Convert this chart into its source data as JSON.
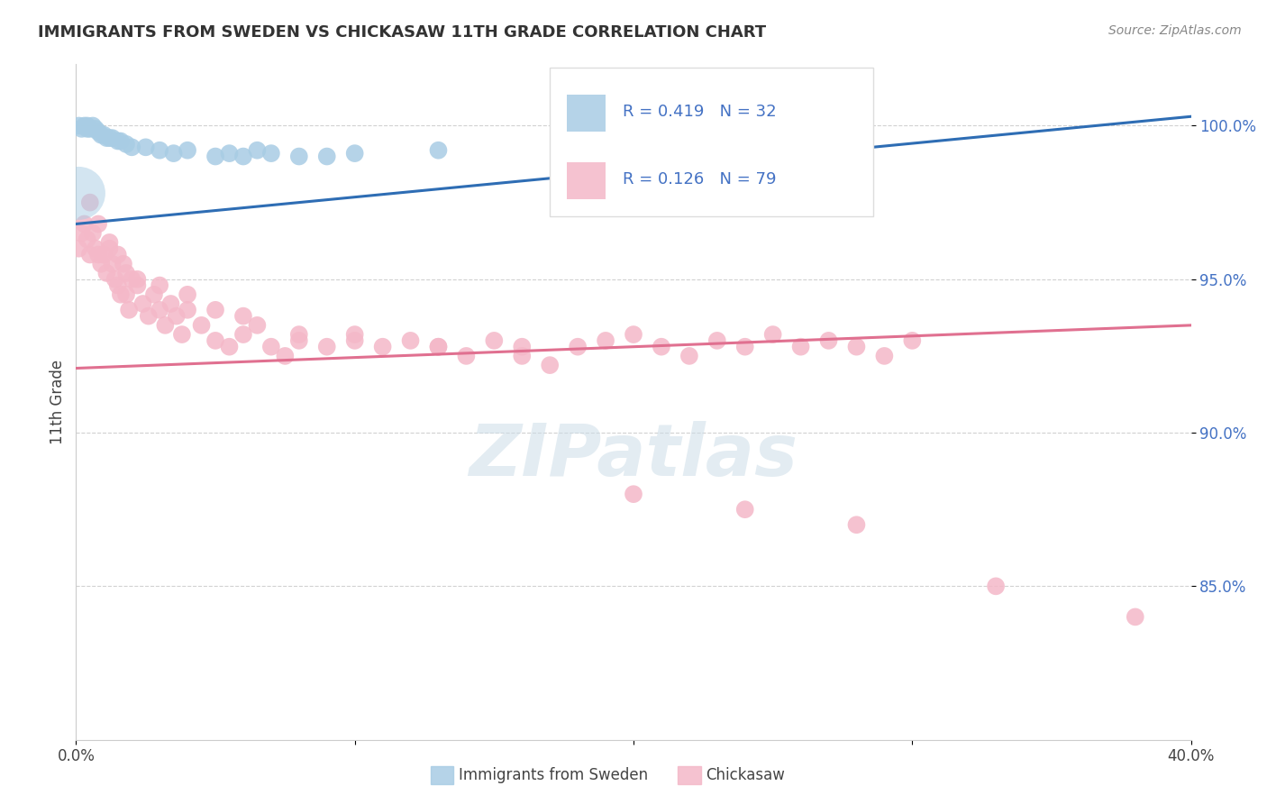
{
  "title": "IMMIGRANTS FROM SWEDEN VS CHICKASAW 11TH GRADE CORRELATION CHART",
  "source": "Source: ZipAtlas.com",
  "ylabel": "11th Grade",
  "xlim": [
    0.0,
    0.4
  ],
  "ylim": [
    0.8,
    1.02
  ],
  "yticks": [
    0.85,
    0.9,
    0.95,
    1.0
  ],
  "yticklabels": [
    "85.0%",
    "90.0%",
    "95.0%",
    "100.0%"
  ],
  "blue_R": 0.419,
  "blue_N": 32,
  "pink_R": 0.126,
  "pink_N": 79,
  "blue_color": "#a8cce4",
  "pink_color": "#f4b8c8",
  "blue_line_color": "#2e6db4",
  "pink_line_color": "#e07090",
  "watermark": "ZIPatlas",
  "blue_trend_x0": 0.0,
  "blue_trend_y0": 0.968,
  "blue_trend_x1": 0.4,
  "blue_trend_y1": 1.003,
  "pink_trend_x0": 0.0,
  "pink_trend_y0": 0.921,
  "pink_trend_x1": 0.4,
  "pink_trend_y1": 0.935,
  "blue_scatter_x": [
    0.001,
    0.002,
    0.003,
    0.004,
    0.004,
    0.005,
    0.006,
    0.007,
    0.008,
    0.009,
    0.01,
    0.011,
    0.012,
    0.013,
    0.015,
    0.016,
    0.018,
    0.02,
    0.025,
    0.03,
    0.035,
    0.04,
    0.05,
    0.055,
    0.06,
    0.065,
    0.07,
    0.08,
    0.09,
    0.1,
    0.13,
    0.19
  ],
  "blue_scatter_y": [
    1.0,
    0.999,
    1.0,
    0.999,
    1.0,
    0.999,
    1.0,
    0.999,
    0.998,
    0.997,
    0.997,
    0.996,
    0.996,
    0.996,
    0.995,
    0.995,
    0.994,
    0.993,
    0.993,
    0.992,
    0.991,
    0.992,
    0.99,
    0.991,
    0.99,
    0.992,
    0.991,
    0.99,
    0.99,
    0.991,
    0.992,
    0.993
  ],
  "blue_scatter_sizes": [
    80,
    80,
    80,
    80,
    80,
    80,
    80,
    80,
    80,
    80,
    80,
    80,
    80,
    80,
    80,
    80,
    80,
    80,
    80,
    80,
    80,
    80,
    80,
    80,
    80,
    80,
    80,
    80,
    80,
    80,
    80,
    80
  ],
  "blue_big_x": [
    0.001
  ],
  "blue_big_y": [
    0.978
  ],
  "blue_big_size": [
    1800
  ],
  "pink_scatter_x": [
    0.001,
    0.002,
    0.003,
    0.004,
    0.005,
    0.006,
    0.007,
    0.008,
    0.009,
    0.01,
    0.011,
    0.012,
    0.013,
    0.014,
    0.015,
    0.016,
    0.017,
    0.018,
    0.019,
    0.02,
    0.022,
    0.024,
    0.026,
    0.028,
    0.03,
    0.032,
    0.034,
    0.036,
    0.038,
    0.04,
    0.045,
    0.05,
    0.055,
    0.06,
    0.065,
    0.07,
    0.075,
    0.08,
    0.09,
    0.1,
    0.11,
    0.12,
    0.13,
    0.14,
    0.15,
    0.16,
    0.17,
    0.18,
    0.19,
    0.2,
    0.21,
    0.22,
    0.23,
    0.24,
    0.25,
    0.26,
    0.27,
    0.28,
    0.29,
    0.3,
    0.005,
    0.008,
    0.012,
    0.015,
    0.018,
    0.022,
    0.03,
    0.04,
    0.05,
    0.06,
    0.08,
    0.1,
    0.13,
    0.16,
    0.2,
    0.24,
    0.28,
    0.33,
    0.38
  ],
  "pink_scatter_y": [
    0.96,
    0.965,
    0.968,
    0.963,
    0.958,
    0.965,
    0.96,
    0.958,
    0.955,
    0.958,
    0.952,
    0.96,
    0.955,
    0.95,
    0.948,
    0.945,
    0.955,
    0.945,
    0.94,
    0.95,
    0.948,
    0.942,
    0.938,
    0.945,
    0.94,
    0.935,
    0.942,
    0.938,
    0.932,
    0.94,
    0.935,
    0.93,
    0.928,
    0.932,
    0.935,
    0.928,
    0.925,
    0.93,
    0.928,
    0.932,
    0.928,
    0.93,
    0.928,
    0.925,
    0.93,
    0.928,
    0.922,
    0.928,
    0.93,
    0.932,
    0.928,
    0.925,
    0.93,
    0.928,
    0.932,
    0.928,
    0.93,
    0.928,
    0.925,
    0.93,
    0.975,
    0.968,
    0.962,
    0.958,
    0.952,
    0.95,
    0.948,
    0.945,
    0.94,
    0.938,
    0.932,
    0.93,
    0.928,
    0.925,
    0.88,
    0.875,
    0.87,
    0.85,
    0.84
  ]
}
